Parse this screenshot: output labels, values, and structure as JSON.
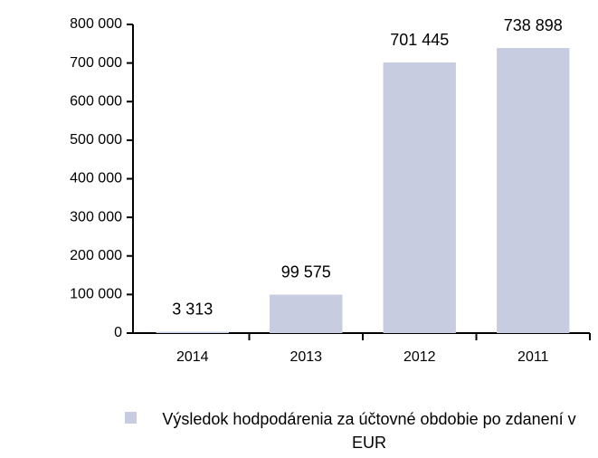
{
  "chart_data": {
    "type": "bar",
    "categories": [
      "2014",
      "2013",
      "2012",
      "2011"
    ],
    "series": [
      {
        "name": "Výsledok hodpodárenia za účtovné obdobie po zdanení v EUR",
        "color": "#c8cce0",
        "values": [
          3313,
          99575,
          701445,
          738898
        ],
        "value_labels": [
          "3 313",
          "99 575",
          "701 445",
          "738 898"
        ]
      }
    ],
    "ylim": [
      0,
      800000
    ],
    "yticks": [
      {
        "value": 0,
        "label": "0"
      },
      {
        "value": 100000,
        "label": "100 000"
      },
      {
        "value": 200000,
        "label": "200 000"
      },
      {
        "value": 300000,
        "label": "300 000"
      },
      {
        "value": 400000,
        "label": "400 000"
      },
      {
        "value": 500000,
        "label": "500 000"
      },
      {
        "value": 600000,
        "label": "600 000"
      },
      {
        "value": 700000,
        "label": "700 000"
      },
      {
        "value": 800000,
        "label": "800 000"
      }
    ],
    "grid": false
  }
}
